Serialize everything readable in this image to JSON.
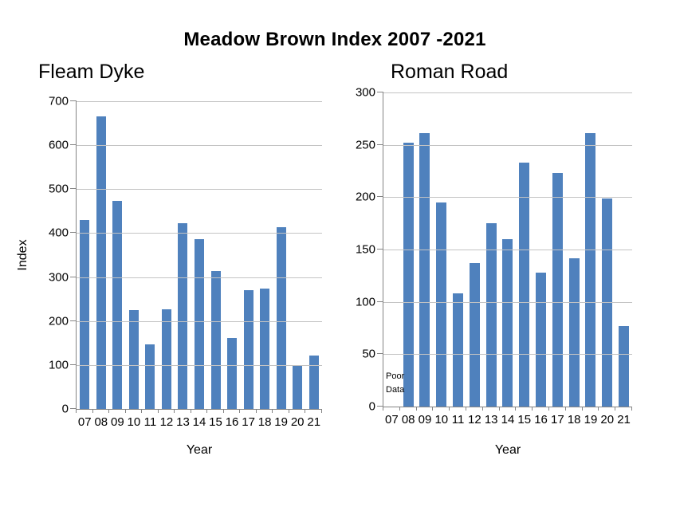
{
  "page_title": "Meadow Brown Index 2007 -2021",
  "colors": {
    "bar": "#4F81BD",
    "gridline": "#C3C3C3",
    "axis": "#848484",
    "text": "#000000"
  },
  "chart_data": [
    {
      "type": "bar",
      "title": "Fleam Dyke",
      "xlabel": "Year",
      "ylabel": "Index",
      "ylim": [
        0,
        700
      ],
      "ystep": 100,
      "grid": true,
      "legend": "none",
      "bar_color": "#4F81BD",
      "categories": [
        "07",
        "08",
        "09",
        "10",
        "11",
        "12",
        "13",
        "14",
        "15",
        "16",
        "17",
        "18",
        "19",
        "20",
        "21"
      ],
      "values": [
        430,
        665,
        473,
        225,
        147,
        227,
        422,
        386,
        314,
        162,
        270,
        274,
        414,
        100,
        121
      ]
    },
    {
      "type": "bar",
      "title": "Roman Road",
      "xlabel": "Year",
      "ylabel": "",
      "ylim": [
        0,
        300
      ],
      "ystep": 50,
      "grid": true,
      "legend": "none",
      "bar_color": "#4F81BD",
      "annotation": "Poor\nData",
      "categories": [
        "07",
        "08",
        "09",
        "10",
        "11",
        "12",
        "13",
        "14",
        "15",
        "16",
        "17",
        "18",
        "19",
        "20",
        "21"
      ],
      "values": [
        null,
        252,
        261,
        195,
        108,
        137,
        175,
        160,
        233,
        128,
        223,
        142,
        261,
        199,
        77
      ]
    }
  ]
}
